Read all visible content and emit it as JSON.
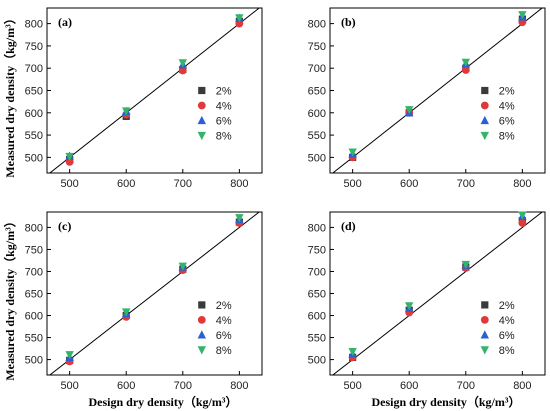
{
  "axis_titles": {
    "y": "Measured dry density（kg/m³）",
    "x": "Design dry density（kg/m³）"
  },
  "colors": {
    "2%": "#3a3a3a",
    "4%": "#e0393c",
    "6%": "#2a5fd6",
    "8%": "#34b36b",
    "reference_line": "#000000",
    "axes": "#000000"
  },
  "chart_data": [
    {
      "type": "scatter",
      "panel_label": "(a)",
      "xlabel": "",
      "ylabel": "Measured dry density（kg/m³）",
      "xlim": [
        460,
        840
      ],
      "ylim": [
        465,
        835
      ],
      "xticks": [
        500,
        600,
        700,
        800
      ],
      "yticks": [
        500,
        550,
        600,
        650,
        700,
        750,
        800
      ],
      "legend": "right-middle",
      "reference_line": "y = x",
      "x": [
        500,
        600,
        700,
        800
      ],
      "series": [
        {
          "name": "2%",
          "marker": "square",
          "values": [
            495,
            592,
            697,
            805
          ]
        },
        {
          "name": "4%",
          "marker": "circle",
          "values": [
            490,
            596,
            695,
            800
          ]
        },
        {
          "name": "6%",
          "marker": "triangle-up",
          "values": [
            503,
            603,
            708,
            812
          ]
        },
        {
          "name": "8%",
          "marker": "triangle-down",
          "values": [
            502,
            604,
            712,
            813
          ]
        }
      ]
    },
    {
      "type": "scatter",
      "panel_label": "(b)",
      "xlabel": "",
      "ylabel": "",
      "xlim": [
        460,
        840
      ],
      "ylim": [
        465,
        835
      ],
      "xticks": [
        500,
        600,
        700,
        800
      ],
      "yticks": [
        500,
        550,
        600,
        650,
        700,
        750,
        800
      ],
      "legend": "right-middle",
      "reference_line": "y = x",
      "x": [
        500,
        600,
        700,
        800
      ],
      "series": [
        {
          "name": "2%",
          "marker": "square",
          "values": [
            500,
            600,
            700,
            810
          ]
        },
        {
          "name": "4%",
          "marker": "circle",
          "values": [
            500,
            600,
            696,
            803
          ]
        },
        {
          "name": "6%",
          "marker": "triangle-up",
          "values": [
            508,
            600,
            710,
            815
          ]
        },
        {
          "name": "8%",
          "marker": "triangle-down",
          "values": [
            512,
            607,
            713,
            820
          ]
        }
      ]
    },
    {
      "type": "scatter",
      "panel_label": "(c)",
      "xlabel": "Design dry density（kg/m³）",
      "ylabel": "Measured dry density（kg/m³）",
      "xlim": [
        460,
        840
      ],
      "ylim": [
        465,
        835
      ],
      "xticks": [
        500,
        600,
        700,
        800
      ],
      "yticks": [
        500,
        550,
        600,
        650,
        700,
        750,
        800
      ],
      "legend": "right-bottom",
      "reference_line": "y = x",
      "x": [
        500,
        600,
        700,
        800
      ],
      "series": [
        {
          "name": "2%",
          "marker": "square",
          "values": [
            498,
            600,
            705,
            812
          ]
        },
        {
          "name": "4%",
          "marker": "circle",
          "values": [
            496,
            597,
            703,
            810
          ]
        },
        {
          "name": "6%",
          "marker": "triangle-up",
          "values": [
            505,
            604,
            710,
            818
          ]
        },
        {
          "name": "8%",
          "marker": "triangle-down",
          "values": [
            511,
            608,
            712,
            822
          ]
        }
      ]
    },
    {
      "type": "scatter",
      "panel_label": "(d)",
      "xlabel": "Design dry density（kg/m³）",
      "ylabel": "",
      "xlim": [
        460,
        840
      ],
      "ylim": [
        465,
        835
      ],
      "xticks": [
        500,
        600,
        700,
        800
      ],
      "yticks": [
        500,
        550,
        600,
        650,
        700,
        750,
        800
      ],
      "legend": "right-bottom",
      "reference_line": "y = x",
      "x": [
        500,
        600,
        700,
        800
      ],
      "series": [
        {
          "name": "2%",
          "marker": "square",
          "values": [
            505,
            612,
            710,
            815
          ]
        },
        {
          "name": "4%",
          "marker": "circle",
          "values": [
            505,
            607,
            708,
            810
          ]
        },
        {
          "name": "6%",
          "marker": "triangle-up",
          "values": [
            513,
            617,
            714,
            826
          ]
        },
        {
          "name": "8%",
          "marker": "triangle-down",
          "values": [
            518,
            622,
            716,
            828
          ]
        }
      ]
    }
  ]
}
